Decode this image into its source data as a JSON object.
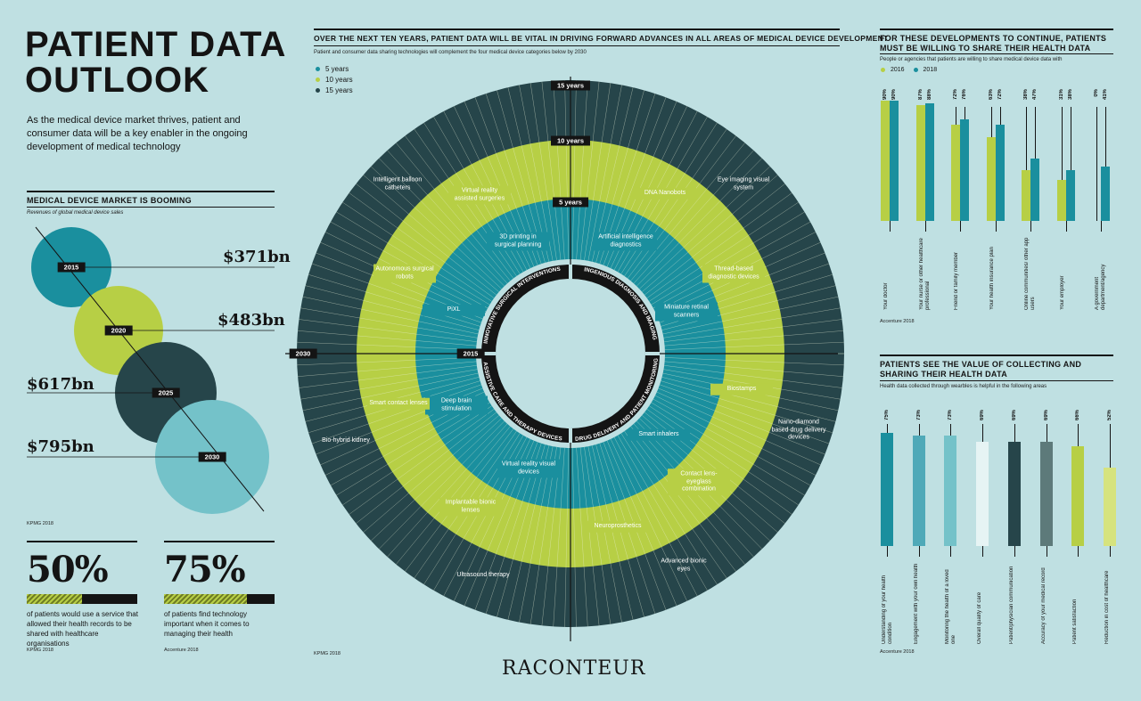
{
  "title_line1": "PATIENT DATA",
  "title_line2": "OUTLOOK",
  "intro": "As the medical device market thrives, patient and consumer data will be a key enabler in the ongoing development of medical technology",
  "market": {
    "title": "MEDICAL DEVICE MARKET IS BOOMING",
    "subtitle": "Revenues of global medical device sales",
    "source": "KPMG 2018",
    "items": [
      {
        "year": "2015",
        "value": "$371bn",
        "color": "#1a8f9e"
      },
      {
        "year": "2020",
        "value": "$483bn",
        "color": "#b7cf45"
      },
      {
        "year": "2025",
        "value": "$617bn",
        "color": "#26454a"
      },
      {
        "year": "2030",
        "value": "$795bn",
        "color": "#74c2c9"
      }
    ]
  },
  "stat1": {
    "value": "50%",
    "fraction": 0.5,
    "text": "of patients would use a service that allowed their health records to be shared with healthcare organisations",
    "source": "KPMG 2018"
  },
  "stat2": {
    "value": "75%",
    "fraction": 0.75,
    "text": "of patients find technology important when it comes to managing their health",
    "source": "Accenture 2018"
  },
  "center": {
    "title": "OVER THE NEXT TEN YEARS, PATIENT DATA WILL BE VITAL IN DRIVING FORWARD ADVANCES IN ALL AREAS OF MEDICAL DEVICE DEVELOPMENT",
    "subtitle": "Patient and consumer data sharing technologies will complement the four medical device categories below by 2030",
    "source": "KPMG 2018",
    "legend": [
      {
        "label": "5 years",
        "color": "#1a8f9e"
      },
      {
        "label": "10 years",
        "color": "#b7cf45"
      },
      {
        "label": "15 years",
        "color": "#26454a"
      }
    ],
    "ring_labels": [
      "15 years",
      "10 years",
      "5 years"
    ],
    "axis_left": "2030",
    "axis_inner": "2015",
    "categories": [
      "INNOVATIVE SURGICAL INTERVENTIONS",
      "INGENIOUS DIAGNOSIS AND IMAGING",
      "DRUG DELIVERY AND PATIENT MONITORING",
      "ASSISTIVE CARE AND THERAPY DEVICES"
    ],
    "devices": {
      "inner": [
        "3D printing in surgical planning",
        "Artificial intelligence diagnostics",
        "PiXL",
        "Miniature retinal scanners",
        "Deep brain stimulation",
        "Smart inhalers",
        "Virtual reality visual devices"
      ],
      "middle": [
        "Virtual reality assisted surgeries",
        "DNA Nanobots",
        "Autonomous surgical robots",
        "Thread-based diagnostic devices",
        "Smart contact lenses",
        "Biostamps",
        "Implantable bionic lenses",
        "Contact lens-eyeglass combination",
        "Neuroprosthetics"
      ],
      "outer": [
        "Intelligent balloon catheters",
        "Eye imaging visual system",
        "Bio-hybrid kidney",
        "Nano-diamond based drug delivery devices",
        "Ultrasound therapy",
        "Advanced bionic eyes"
      ]
    }
  },
  "brand": "RACONTEUR",
  "share": {
    "title": "FOR THESE DEVELOPMENTS TO CONTINUE, PATIENTS MUST BE WILLING TO SHARE THEIR HEALTH DATA",
    "subtitle": "People or agencies that patients are willing to share medical device data with",
    "source": "Accenture 2018",
    "chart_data": {
      "type": "bar",
      "categories": [
        "Your doctor",
        "Your nurse or other healthcare professional",
        "Friend or family member",
        "Your health insurance plan",
        "Online communities/ other app users",
        "Your employer",
        "A government department/agency"
      ],
      "series": [
        {
          "name": "2016",
          "color": "#b7cf45",
          "values": [
            90,
            87,
            72,
            63,
            38,
            31,
            0
          ]
        },
        {
          "name": "2018",
          "color": "#1a8f9e",
          "values": [
            90,
            88,
            76,
            72,
            47,
            38,
            41
          ]
        }
      ],
      "labels_2016": [
        "90%",
        "87%",
        "72%",
        "63%",
        "38%",
        "31%",
        "0%"
      ],
      "labels_2018": [
        "90%",
        "88%",
        "76%",
        "72%",
        "47%",
        "38%",
        "41%"
      ],
      "ylim": [
        0,
        100
      ]
    }
  },
  "value": {
    "title": "PATIENTS SEE THE VALUE OF COLLECTING AND SHARING THEIR HEALTH DATA",
    "subtitle": "Health data collected through wearbles is helpful in the following areas",
    "source": "Accenture 2018",
    "chart_data": {
      "type": "bar",
      "categories": [
        "Understanding of your health condition",
        "Engagement with your own health",
        "Monitoring the health of a loved one",
        "Overall quality of care",
        "Patient/physician communication",
        "Accuracy of your medical record",
        "Patient satisfaction",
        "Reduction in cost of healthcare"
      ],
      "values": [
        75,
        73,
        73,
        69,
        69,
        69,
        66,
        52
      ],
      "labels": [
        "75%",
        "73%",
        "73%",
        "69%",
        "69%",
        "69%",
        "66%",
        "52%"
      ],
      "colors": [
        "#1a8f9e",
        "#4fa9b8",
        "#74c2c9",
        "#e6f4f4",
        "#26454a",
        "#5d7a7a",
        "#b7cf45",
        "#d6e37e"
      ],
      "ylim": [
        0,
        100
      ]
    }
  }
}
